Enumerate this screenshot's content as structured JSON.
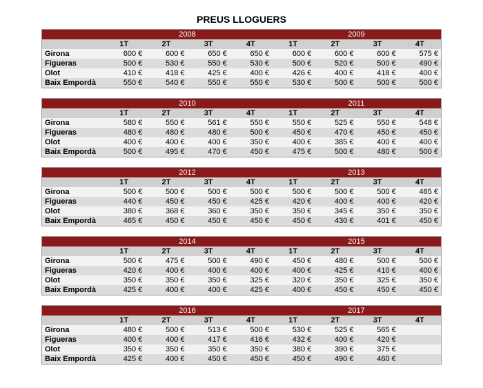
{
  "title": "PREUS LLOGUERS",
  "quarters": [
    "1T",
    "2T",
    "3T",
    "4T"
  ],
  "locations": [
    "Girona",
    "Figueras",
    "Olot",
    "Baix Empordà"
  ],
  "currency": "€",
  "colors": {
    "header_bg": "#8a1a1a",
    "header_text": "#ffffff",
    "subheader_bg": "#d0d0d0",
    "row_light": "#f2f2f2",
    "row_dark": "#dcdcdc"
  },
  "blocks": [
    {
      "years": [
        "2008",
        "2009"
      ],
      "rows": [
        {
          "loc": "Girona",
          "vals": [
            600,
            600,
            650,
            650,
            600,
            600,
            600,
            575
          ]
        },
        {
          "loc": "Figueras",
          "vals": [
            500,
            530,
            550,
            530,
            500,
            520,
            500,
            490
          ]
        },
        {
          "loc": "Olot",
          "vals": [
            410,
            418,
            425,
            400,
            426,
            400,
            418,
            400
          ]
        },
        {
          "loc": "Baix Empordà",
          "vals": [
            550,
            540,
            550,
            550,
            530,
            500,
            500,
            500
          ]
        }
      ]
    },
    {
      "years": [
        "2010",
        "2011"
      ],
      "rows": [
        {
          "loc": "Girona",
          "vals": [
            580,
            550,
            561,
            550,
            550,
            525,
            550,
            548
          ]
        },
        {
          "loc": "Figueras",
          "vals": [
            480,
            480,
            480,
            500,
            450,
            470,
            450,
            450
          ]
        },
        {
          "loc": "Olot",
          "vals": [
            400,
            400,
            400,
            350,
            400,
            385,
            400,
            400
          ]
        },
        {
          "loc": "Baix Empordà",
          "vals": [
            500,
            495,
            470,
            450,
            475,
            500,
            480,
            500
          ]
        }
      ]
    },
    {
      "years": [
        "2012",
        "2013"
      ],
      "rows": [
        {
          "loc": "Girona",
          "vals": [
            500,
            500,
            500,
            500,
            500,
            500,
            500,
            465
          ]
        },
        {
          "loc": "Figueras",
          "vals": [
            440,
            450,
            450,
            425,
            420,
            400,
            400,
            420
          ]
        },
        {
          "loc": "Olot",
          "vals": [
            380,
            368,
            360,
            350,
            350,
            345,
            350,
            350
          ]
        },
        {
          "loc": "Baix Empordà",
          "vals": [
            465,
            450,
            450,
            450,
            450,
            430,
            401,
            450
          ]
        }
      ]
    },
    {
      "years": [
        "2014",
        "2015"
      ],
      "rows": [
        {
          "loc": "Girona",
          "vals": [
            500,
            475,
            500,
            490,
            450,
            480,
            500,
            500
          ]
        },
        {
          "loc": "Figueras",
          "vals": [
            420,
            400,
            400,
            400,
            400,
            425,
            410,
            400
          ]
        },
        {
          "loc": "Olot",
          "vals": [
            350,
            350,
            350,
            325,
            320,
            350,
            325,
            350
          ]
        },
        {
          "loc": "Baix Empordà",
          "vals": [
            425,
            400,
            400,
            425,
            400,
            450,
            450,
            450
          ]
        }
      ]
    },
    {
      "years": [
        "2016",
        "2017"
      ],
      "rows": [
        {
          "loc": "Girona",
          "vals": [
            480,
            500,
            513,
            500,
            530,
            525,
            565,
            null
          ]
        },
        {
          "loc": "Figueras",
          "vals": [
            400,
            400,
            417,
            416,
            432,
            400,
            420,
            null
          ]
        },
        {
          "loc": "Olot",
          "vals": [
            350,
            350,
            350,
            350,
            380,
            390,
            375,
            null
          ]
        },
        {
          "loc": "Baix Empordà",
          "vals": [
            425,
            400,
            450,
            450,
            450,
            490,
            460,
            null
          ]
        }
      ]
    }
  ]
}
